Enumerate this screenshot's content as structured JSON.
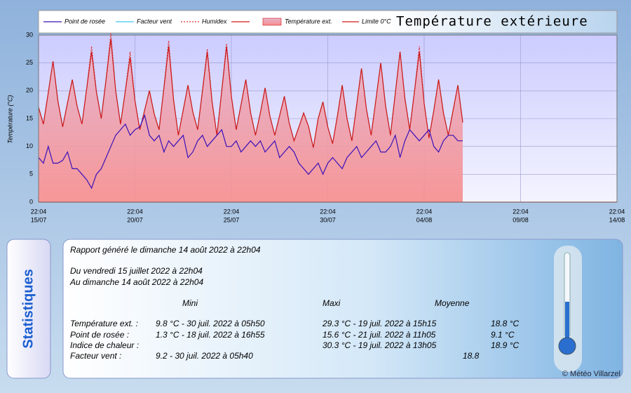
{
  "chart_data": {
    "type": "line",
    "title": "Température extérieure",
    "y_label": "Température (°C)",
    "x": [
      0,
      0.25,
      0.5,
      0.75,
      1,
      1.25,
      1.5,
      1.75,
      2,
      2.25,
      2.5,
      2.75,
      3,
      3.25,
      3.5,
      3.75,
      4,
      4.25,
      4.5,
      4.75,
      5,
      5.25,
      5.5,
      5.75,
      6,
      6.25,
      6.5,
      6.75,
      7,
      7.25,
      7.5,
      7.75,
      8,
      8.25,
      8.5,
      8.75,
      9,
      9.25,
      9.5,
      9.75,
      10,
      10.25,
      10.5,
      10.75,
      11,
      11.25,
      11.5,
      11.75,
      12,
      12.25,
      12.5,
      12.75,
      13,
      13.25,
      13.5,
      13.75,
      14,
      14.25,
      14.5,
      14.75,
      15,
      15.25,
      15.5,
      15.75,
      16,
      16.25,
      16.5,
      16.75,
      17,
      17.25,
      17.5,
      17.75,
      18,
      18.25,
      18.5,
      18.75,
      19,
      19.25,
      19.5,
      19.75,
      20,
      20.25,
      20.5,
      20.75,
      21,
      21.25,
      21.5,
      21.75,
      22
    ],
    "series": [
      {
        "name": "Facteur vent",
        "color": "#40c8f0",
        "style": "solid",
        "values": [
          17,
          14,
          19.6,
          25.3,
          18.2,
          13.5,
          17.8,
          22,
          17.2,
          14,
          20.5,
          27,
          19.8,
          15,
          22,
          29.3,
          20,
          14,
          20,
          26,
          18.2,
          13,
          16.5,
          20,
          15.8,
          13,
          20.5,
          28,
          18.4,
          12,
          16.5,
          21,
          16.2,
          13,
          20,
          27,
          18,
          12,
          20,
          28,
          19,
          13,
          17.5,
          22,
          16,
          12,
          16,
          20.5,
          15.4,
          12,
          15.5,
          19,
          14.2,
          11,
          13.5,
          16,
          13.6,
          9.2,
          15,
          18,
          13.5,
          10.5,
          15.5,
          21,
          15,
          11,
          17.5,
          24,
          16.8,
          12,
          18.5,
          25,
          17.2,
          12,
          19.5,
          27,
          18.6,
          13,
          20,
          27,
          17.7,
          11.5,
          16.5,
          22,
          16,
          12,
          16.5,
          21,
          14.3
        ]
      },
      {
        "name": "Humidex",
        "color": "#e03030",
        "style": "dotted",
        "values": [
          17,
          14,
          19.6,
          25.3,
          18.2,
          13.5,
          17.8,
          22,
          17.2,
          14,
          20.5,
          28,
          19.8,
          15,
          22,
          30.3,
          20,
          14,
          20,
          27,
          18.2,
          13,
          16.5,
          20,
          15.8,
          13,
          20.5,
          29,
          18.4,
          12,
          16.5,
          21,
          16.2,
          13,
          20,
          27.5,
          18,
          12,
          20,
          28.5,
          19,
          13,
          17.5,
          22,
          16,
          12,
          16,
          20.5,
          15.4,
          12,
          15.5,
          19,
          14.2,
          11,
          13.5,
          16,
          13.6,
          9.8,
          15,
          18,
          13.5,
          10.5,
          15.5,
          21,
          15,
          11,
          17.5,
          24,
          16.8,
          12,
          18.5,
          25,
          17.2,
          12,
          19.5,
          27,
          18.6,
          13,
          20,
          28,
          17.7,
          11.5,
          16.5,
          22,
          16,
          12,
          16.5,
          21,
          14.3
        ]
      },
      {
        "name": "Température ext.",
        "color": "#d01818",
        "style": "area",
        "values": [
          17,
          14,
          19.6,
          25.3,
          18.2,
          13.5,
          17.8,
          22,
          17.2,
          14,
          20.5,
          27,
          19.8,
          15,
          22,
          29.3,
          20,
          14,
          20,
          26,
          18.2,
          13,
          16.5,
          20,
          15.8,
          13,
          20.5,
          28,
          18.4,
          12,
          16.5,
          21,
          16.2,
          13,
          20,
          27,
          18,
          12,
          20,
          28,
          19,
          13,
          17.5,
          22,
          16,
          12,
          16,
          20.5,
          15.4,
          12,
          15.5,
          19,
          14.2,
          11,
          13.5,
          16,
          13.6,
          9.8,
          15,
          18,
          13.5,
          10.5,
          15.5,
          21,
          15,
          11,
          17.5,
          24,
          16.8,
          12,
          18.5,
          25,
          17.2,
          12,
          19.5,
          27,
          18.6,
          13,
          20,
          27,
          17.7,
          11.5,
          16.5,
          22,
          16,
          12,
          16.5,
          21,
          14.3
        ]
      },
      {
        "name": "Point de rosée",
        "color": "#3a10b8",
        "style": "solid",
        "values": [
          8,
          7,
          10,
          7,
          7,
          7.5,
          9,
          6,
          6,
          5,
          4,
          2.5,
          5,
          6,
          8,
          10,
          12,
          13,
          14,
          12,
          13,
          13.5,
          15.6,
          12,
          11,
          12,
          9,
          11,
          10,
          11,
          12,
          8,
          9,
          11,
          12,
          10,
          11,
          12,
          13,
          10,
          10,
          11,
          9,
          10,
          11,
          10,
          11,
          9,
          10,
          11,
          8,
          9,
          10,
          9,
          7,
          6,
          5,
          6,
          7,
          5,
          7,
          8,
          7,
          6,
          8,
          9,
          10,
          8,
          9,
          10,
          11,
          9,
          9,
          10,
          12,
          8,
          11,
          13,
          12,
          11,
          12,
          13,
          10,
          9,
          11,
          12,
          12,
          11,
          11
        ]
      }
    ],
    "threshold": {
      "name": "Limite 0°C",
      "value": 0,
      "color": "#d01818"
    },
    "xlim": [
      0,
      30
    ],
    "xticks": [
      {
        "value": 0,
        "label": [
          "22:04",
          "15/07"
        ]
      },
      {
        "value": 5,
        "label": [
          "22:04",
          "20/07"
        ]
      },
      {
        "value": 10,
        "label": [
          "22:04",
          "25/07"
        ]
      },
      {
        "value": 15,
        "label": [
          "22:04",
          "30/07"
        ]
      },
      {
        "value": 20,
        "label": [
          "22:04",
          "04/08"
        ]
      },
      {
        "value": 25,
        "label": [
          "22:04",
          "09/08"
        ]
      },
      {
        "value": 30,
        "label": [
          "22:04",
          "14/08"
        ]
      }
    ],
    "ylim": [
      0,
      30
    ],
    "yticks": [
      0,
      5,
      10,
      15,
      20,
      25,
      30
    ],
    "grid": true
  },
  "stats": {
    "title": "Statistiques",
    "report": "Rapport généré le dimanche 14 août 2022 à 22h04",
    "from": "Du vendredi 15 juillet 2022 à 22h04",
    "to": "Au dimanche 14 août 2022 à 22h04",
    "columns": [
      "Mini",
      "Maxi",
      "Moyenne"
    ],
    "rows": [
      {
        "label": "Température ext. :",
        "mini": "9.8 °C - 30 juil. 2022 à 05h50",
        "maxi": "29.3 °C - 19 juil. 2022 à 15h15",
        "moyenne": "18.8 °C"
      },
      {
        "label": "Point de rosée :",
        "mini": "1.3 °C - 18 juil. 2022 à 16h55",
        "maxi": "15.6 °C - 21 juil. 2022 à 11h05",
        "moyenne": "9.1 °C"
      },
      {
        "label": "Indice de chaleur :",
        "mini": null,
        "maxi": "30.3 °C - 19 juil. 2022 à 13h05",
        "moyenne": "18.9 °C"
      },
      {
        "label": "Facteur vent :",
        "mini": "9.2  - 30 juil. 2022 à 05h40",
        "maxi": null,
        "moyenne": "18.8"
      }
    ],
    "credit": "© Météo Villarzel"
  }
}
